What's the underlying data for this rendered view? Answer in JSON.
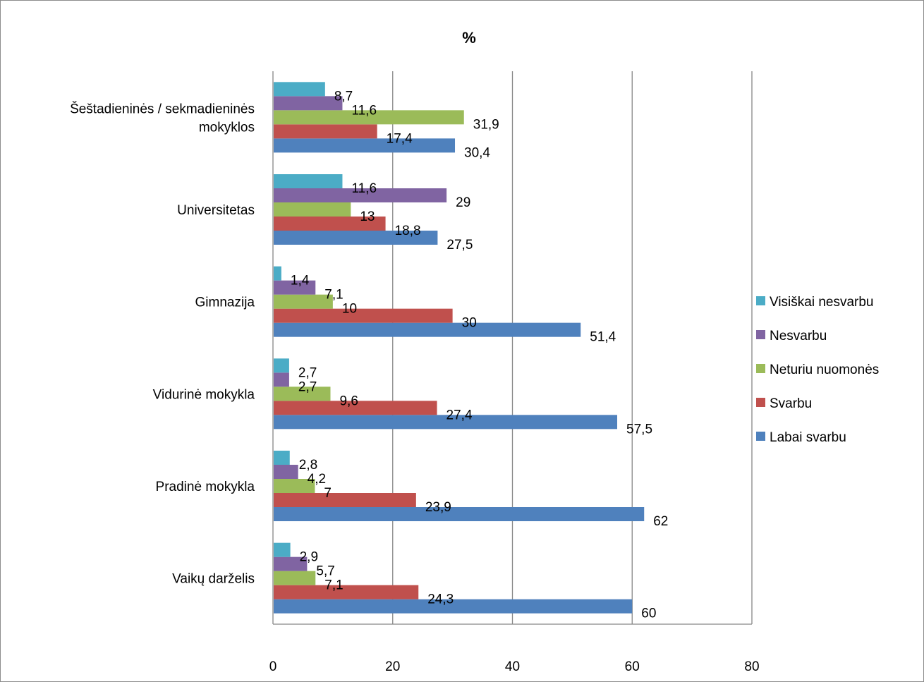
{
  "chart_data": {
    "type": "bar",
    "orientation": "horizontal",
    "title": "%",
    "categories": [
      "Vaikų darželis",
      "Pradinė mokykla",
      "Vidurinė mokykla",
      "Gimnazija",
      "Universitetas",
      "Šeštadieninės / sekmadieninės mokyklos"
    ],
    "category_lines": [
      [
        "Vaikų darželis"
      ],
      [
        "Pradinė mokykla"
      ],
      [
        "Vidurinė mokykla"
      ],
      [
        "Gimnazija"
      ],
      [
        "Universitetas"
      ],
      [
        "Šeštadieninės / sekmadieninės",
        "mokyklos"
      ]
    ],
    "series": [
      {
        "name": "Labai svarbu",
        "color": "#4f81bd",
        "values": [
          60,
          62,
          57.5,
          51.4,
          27.5,
          30.4
        ],
        "labels": [
          "60",
          "62",
          "57,5",
          "51,4",
          "27,5",
          "30,4"
        ]
      },
      {
        "name": "Svarbu",
        "color": "#c0504d",
        "values": [
          24.3,
          23.9,
          27.4,
          30,
          18.8,
          17.4
        ],
        "labels": [
          "24,3",
          "23,9",
          "27,4",
          "30",
          "18,8",
          "17,4"
        ]
      },
      {
        "name": "Neturiu nuomonės",
        "color": "#9bbb59",
        "values": [
          7.1,
          7,
          9.6,
          10,
          13,
          31.9
        ],
        "labels": [
          "7,1",
          "7",
          "9,6",
          "10",
          "13",
          "31,9"
        ]
      },
      {
        "name": "Nesvarbu",
        "color": "#8064a2",
        "values": [
          5.7,
          4.2,
          2.7,
          7.1,
          29,
          11.6
        ],
        "labels": [
          "5,7",
          "4,2",
          "2,7",
          "7,1",
          "29",
          "11,6"
        ]
      },
      {
        "name": "Visiškai nesvarbu",
        "color": "#4bacc6",
        "values": [
          2.9,
          2.8,
          2.7,
          1.4,
          11.6,
          8.7
        ],
        "labels": [
          "2,9",
          "2,8",
          "2,7",
          "1,4",
          "11,6",
          "8,7"
        ]
      }
    ],
    "xlim": [
      0,
      80
    ],
    "xticks": [
      0,
      20,
      40,
      60,
      80
    ],
    "xtick_labels": [
      "0",
      "20",
      "40",
      "60",
      "80"
    ],
    "grid": true,
    "legend_position": "right",
    "gridline_color": "#868686"
  }
}
